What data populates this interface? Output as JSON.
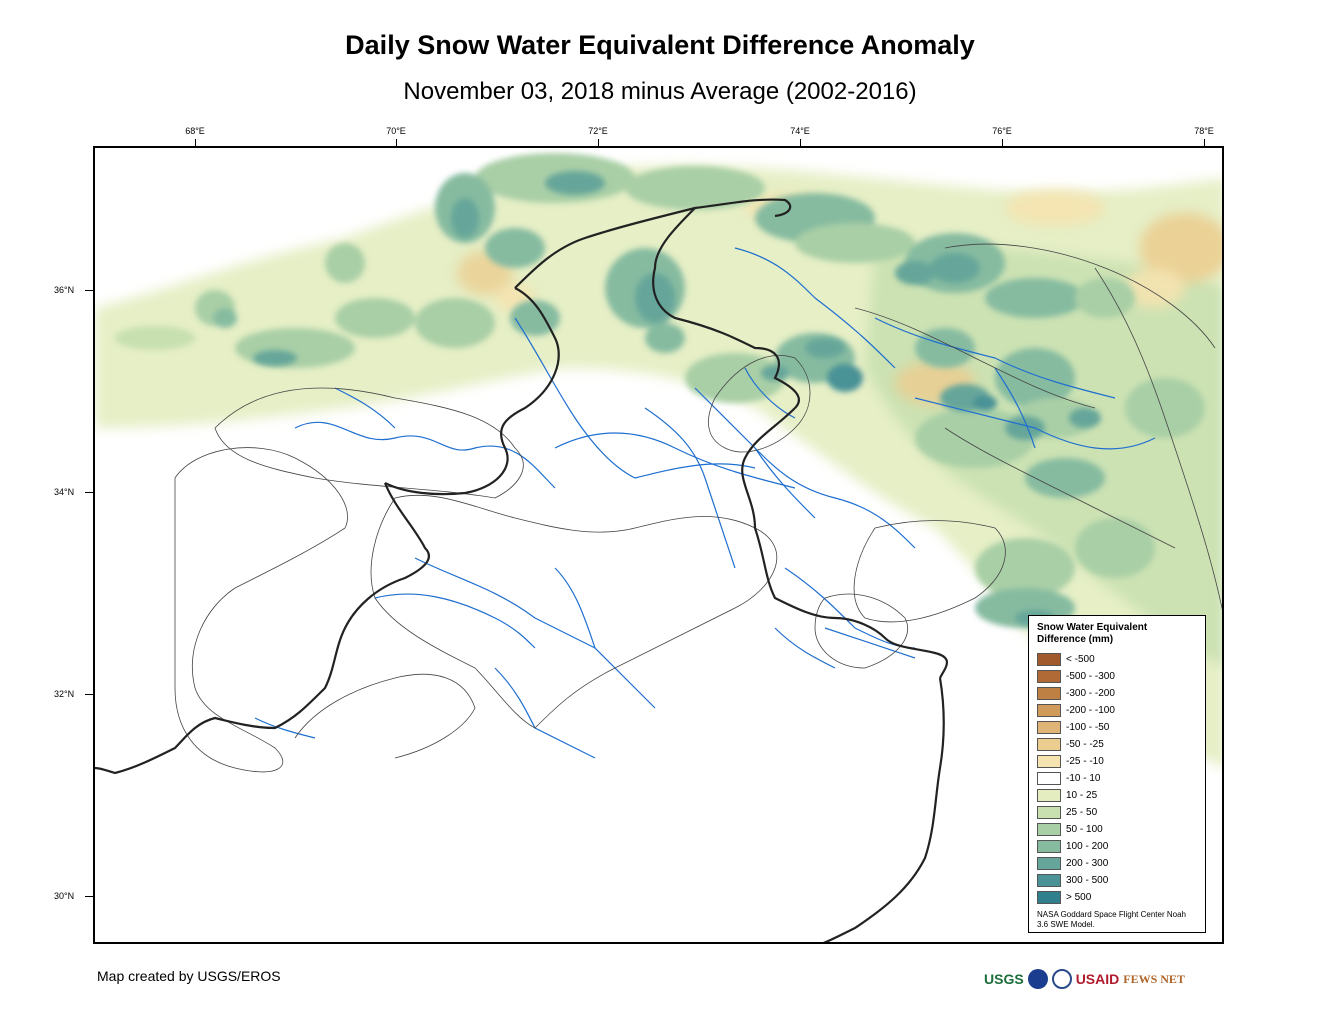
{
  "title": "Daily Snow Water Equivalent Difference Anomaly",
  "subtitle": "November 03, 2018 minus Average (2002-2016)",
  "map": {
    "longitude_labels": [
      "68°E",
      "70°E",
      "72°E",
      "74°E",
      "76°E",
      "78°E"
    ],
    "latitude_labels": [
      "36°N",
      "34°N",
      "32°N",
      "30°N"
    ]
  },
  "legend": {
    "title": "Snow Water Equivalent Difference (mm)",
    "classes": [
      {
        "label": "< -500",
        "color": "#a05a2c"
      },
      {
        "label": "-500 - -300",
        "color": "#b06a35"
      },
      {
        "label": "-300 - -200",
        "color": "#bf8044"
      },
      {
        "label": "-200 - -100",
        "color": "#cf9a5a"
      },
      {
        "label": "-100 - -50",
        "color": "#deb577"
      },
      {
        "label": "-50 - -25",
        "color": "#ebcd90"
      },
      {
        "label": "-25 - -10",
        "color": "#f5e3b0"
      },
      {
        "label": "-10 - 10",
        "color": "#ffffff"
      },
      {
        "label": "10 - 25",
        "color": "#e3edc0"
      },
      {
        "label": "25 - 50",
        "color": "#c8e0b0"
      },
      {
        "label": "50 - 100",
        "color": "#a9cfa6"
      },
      {
        "label": "100 - 200",
        "color": "#86bba0"
      },
      {
        "label": "200 - 300",
        "color": "#66a69a"
      },
      {
        "label": "300 - 500",
        "color": "#4a9296"
      },
      {
        "label": "> 500",
        "color": "#2f7f8c"
      }
    ],
    "source": "NASA Goddard Space Flight Center Noah 3.6 SWE Model."
  },
  "credit": "Map created by USGS/EROS",
  "logos": {
    "usgs": "USGS",
    "usaid": "USAID",
    "fews": "FEWS NET"
  }
}
